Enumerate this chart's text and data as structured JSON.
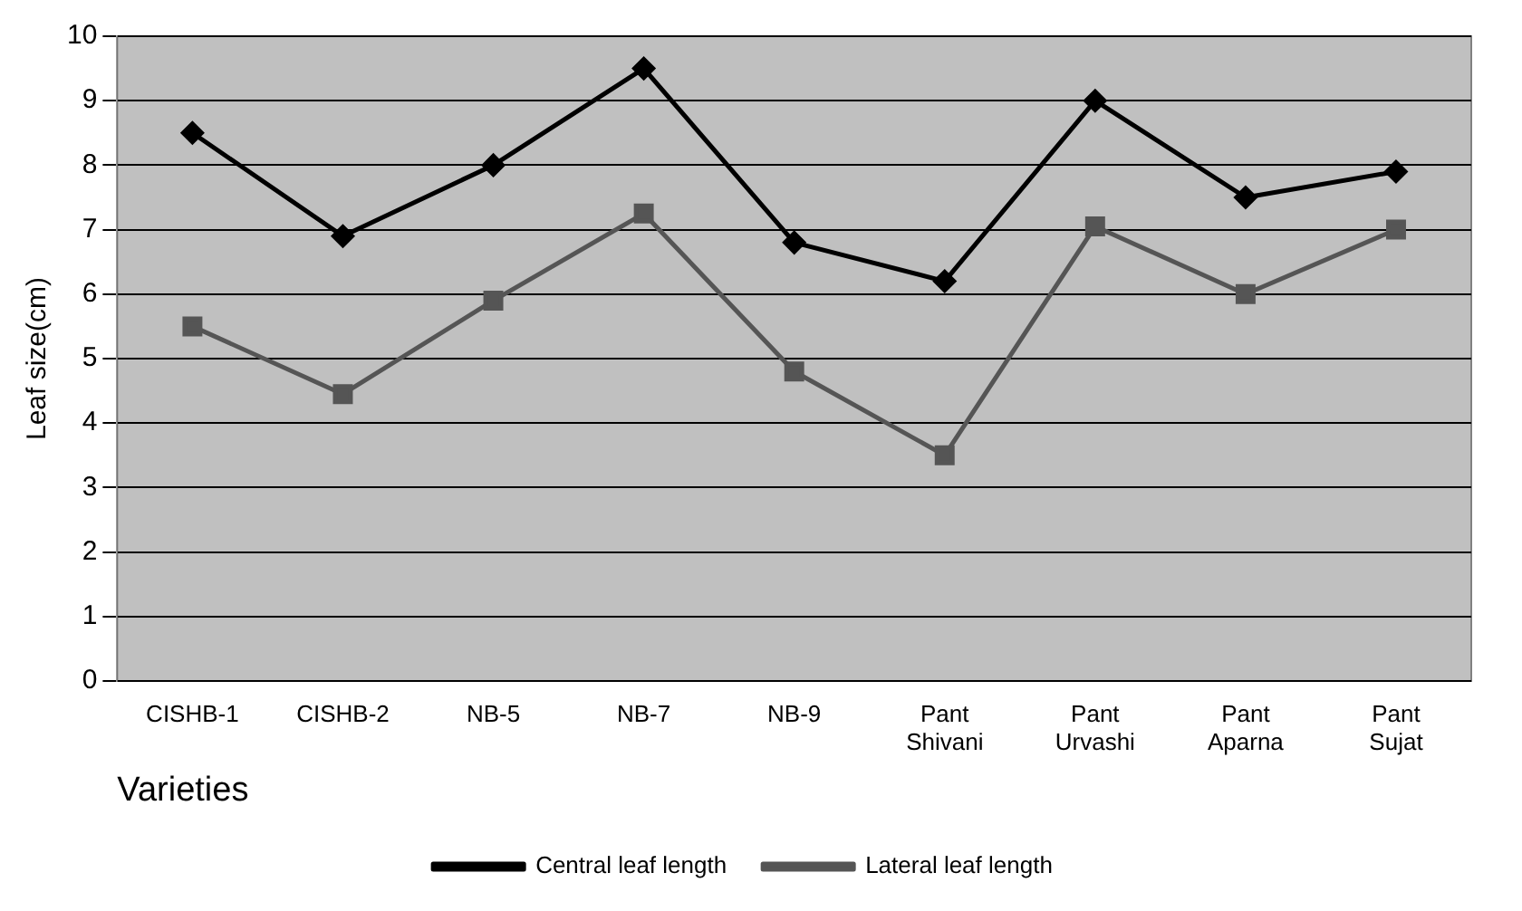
{
  "chart_data": {
    "type": "line",
    "xlabel": "Varieties",
    "ylabel": "Leaf size(cm)",
    "categories": [
      "CISHB-1",
      "CISHB-2",
      "NB-5",
      "NB-7",
      "NB-9",
      "Pant Shivani",
      "Pant Urvashi",
      "Pant Aparna",
      "Pant Sujat"
    ],
    "series": [
      {
        "name": "Central leaf length",
        "color": "#000000",
        "marker": "diamond",
        "values": [
          8.5,
          6.9,
          8.0,
          9.5,
          6.8,
          6.2,
          9.0,
          7.5,
          7.9
        ]
      },
      {
        "name": "Lateral leaf length",
        "color": "#555555",
        "marker": "square",
        "values": [
          5.5,
          4.45,
          5.9,
          7.25,
          4.8,
          3.5,
          7.05,
          6.0,
          7.0
        ]
      }
    ],
    "ylim": [
      0,
      10
    ],
    "yticks": [
      0,
      1,
      2,
      3,
      4,
      5,
      6,
      7,
      8,
      9,
      10
    ],
    "grid": "y",
    "legend": "bottom",
    "line_style": "solid"
  }
}
